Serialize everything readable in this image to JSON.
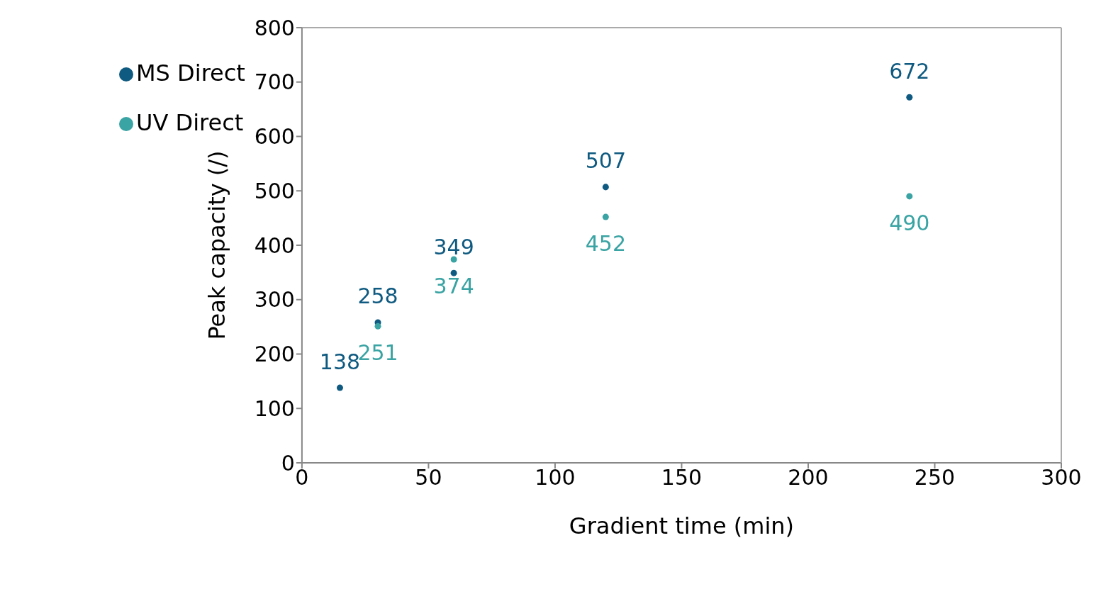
{
  "chart_data": {
    "type": "scatter",
    "xlabel": "Gradient time (min)",
    "ylabel": "Peak capacity (/)",
    "xlim": [
      0,
      300
    ],
    "xticks": [
      0,
      50,
      100,
      150,
      200,
      250,
      300
    ],
    "ylim": [
      0,
      800
    ],
    "yticks": [
      0,
      100,
      200,
      300,
      400,
      500,
      600,
      700,
      800
    ],
    "grid": false,
    "legend": "top left",
    "marker": "circle",
    "data_labels": true,
    "series": [
      {
        "name": "MS Direct",
        "color": "#0f5a80",
        "x": [
          15,
          30,
          60,
          120,
          240
        ],
        "values": [
          138,
          258,
          349,
          507,
          672
        ]
      },
      {
        "name": "UV Direct",
        "color": "#3aa3a3",
        "x": [
          30,
          60,
          120,
          240
        ],
        "values": [
          251,
          374,
          452,
          490
        ]
      }
    ]
  }
}
